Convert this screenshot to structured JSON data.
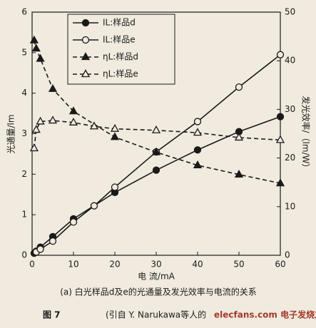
{
  "chart_data": {
    "type": "line",
    "xlabel": "电 流/mA",
    "ylabel": "光通量/lm",
    "y2label": "发光效率/（lm/W）",
    "caption": "(a) 白光样品d及e的光通量及发光效率与电流的关系",
    "figure_label": "图 7",
    "source_note": "(引自 Y. Narukawa等人的",
    "watermark": "elecfans.com 电子发烧友",
    "xlim": [
      0,
      60
    ],
    "xticks": [
      0,
      10,
      20,
      30,
      40,
      50,
      60
    ],
    "ylim": [
      0,
      6
    ],
    "yticks": [
      0,
      1,
      2,
      3,
      4,
      5,
      6
    ],
    "y2lim": [
      0,
      50
    ],
    "y2ticks": [
      0,
      10,
      20,
      30,
      40,
      50
    ],
    "legend": "upper left",
    "series": [
      {
        "name": "IL:样品d",
        "color": "#1a1a1a",
        "marker": "circle",
        "filled": true,
        "dashed": false,
        "x": [
          0.5,
          1,
          2,
          5,
          10,
          20,
          30,
          40,
          50,
          60
        ],
        "values": [
          0.05,
          0.1,
          0.2,
          0.46,
          0.9,
          1.55,
          2.1,
          2.6,
          3.05,
          3.42
        ]
      },
      {
        "name": "IL:样品e",
        "color": "#1a1a1a",
        "marker": "circle",
        "filled": false,
        "dashed": false,
        "x": [
          1,
          2,
          5,
          10,
          15,
          20,
          30,
          40,
          50,
          60
        ],
        "values": [
          0.08,
          0.15,
          0.35,
          0.82,
          1.22,
          1.68,
          2.55,
          3.3,
          4.15,
          4.95
        ]
      },
      {
        "name": "ηL:样品d",
        "color": "#1a1a1a",
        "marker": "triangle",
        "filled": true,
        "dashed": true,
        "axis": "y2",
        "x": [
          0.5,
          1,
          2,
          5,
          10,
          20,
          30,
          40,
          50,
          60
        ],
        "values": [
          44.2,
          42.5,
          40.4,
          34.2,
          29.6,
          24.3,
          21.2,
          18.5,
          16.6,
          14.8
        ]
      },
      {
        "name": "ηL:样品e",
        "color": "#1a1a1a",
        "marker": "triangle",
        "filled": false,
        "dashed": true,
        "axis": "y2",
        "x": [
          0.5,
          1,
          2,
          5,
          10,
          15,
          20,
          30,
          40,
          50,
          60
        ],
        "values": [
          22,
          25.8,
          27.5,
          27.7,
          27.3,
          26.5,
          26,
          25.7,
          25.2,
          24.2,
          23.7
        ]
      }
    ]
  }
}
